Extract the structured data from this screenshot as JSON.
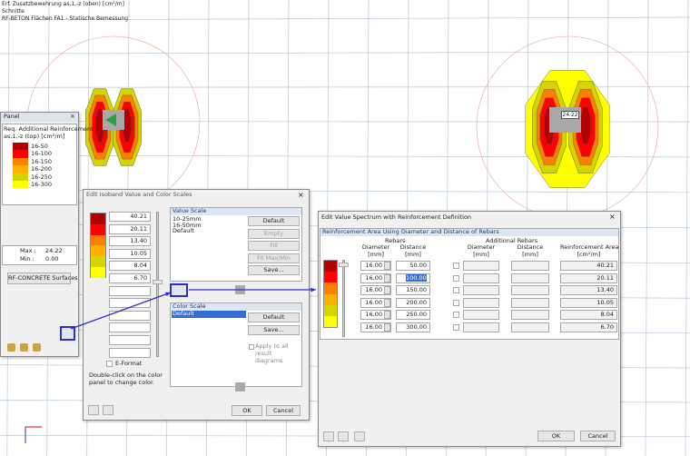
{
  "header": {
    "lines": [
      "Erf. Zusatzbewehrung as,1,-z (oben) [cm²/m]",
      "Schnitte",
      "RF-BETON Flächen FA1 - Statische Bemessung"
    ]
  },
  "model": {
    "max_label": "24.22"
  },
  "panel": {
    "title": "Panel",
    "heading": "Req. Additional Reinforcement",
    "unit": "as,1,-z (top) [cm²/m]",
    "legend": [
      {
        "label": "16-50",
        "color": "#b30000"
      },
      {
        "label": "16-100",
        "color": "#ff0000"
      },
      {
        "label": "16-150",
        "color": "#ff7f00"
      },
      {
        "label": "16-200",
        "color": "#ffb000"
      },
      {
        "label": "16-250",
        "color": "#d4d400"
      },
      {
        "label": "16-300",
        "color": "#ffff00"
      }
    ],
    "max_label": "Max :",
    "max": "24.22",
    "min_label": "Min :",
    "min": "0.00",
    "button": "RF-CONCRETE Surfaces"
  },
  "isoband_dialog": {
    "title": "Edit Isoband Value and Color Scales",
    "values": [
      "40.21",
      "20.11",
      "13.40",
      "10.05",
      "8.04",
      "6.70"
    ],
    "value_scale": {
      "title": "Value Scale",
      "items": [
        "10-25mm",
        "16-50mm",
        "Default"
      ],
      "buttons": [
        "Default",
        "Empty",
        "Fill",
        "Fit Max/Min",
        "Save..."
      ]
    },
    "color_scale": {
      "title": "Color Scale",
      "items": [
        "Default"
      ],
      "buttons": [
        "Default",
        "Save..."
      ],
      "apply_all": "Apply to all result diagrams"
    },
    "e_format": "E-Format",
    "hint": "Double-click on the color panel to change color.",
    "ok": "OK",
    "cancel": "Cancel"
  },
  "spectrum_dialog": {
    "title": "Edit Value Spectrum with Reinforcement Definition",
    "section": "Reinforcement Area Using Diameter and Distance of Rebars",
    "group_rebars": "Rebars",
    "group_additional": "Additional Rebars",
    "columns": [
      {
        "name": "Diameter",
        "unit": "[mm]"
      },
      {
        "name": "Distance",
        "unit": "[mm]"
      },
      {
        "name": "Diameter",
        "unit": "[mm]"
      },
      {
        "name": "Distance",
        "unit": "[mm]"
      },
      {
        "name": "Reinforcement Area",
        "unit": "[cm²/m]"
      }
    ],
    "rows": [
      [
        "16.00",
        "50.00",
        "40.21"
      ],
      [
        "16.00",
        "100.00",
        "20.11"
      ],
      [
        "16.00",
        "150.00",
        "13.40"
      ],
      [
        "16.00",
        "200.00",
        "10.05"
      ],
      [
        "16.00",
        "250.00",
        "8.04"
      ],
      [
        "16.00",
        "300.00",
        "6.70"
      ]
    ],
    "ok": "OK",
    "cancel": "Cancel"
  }
}
